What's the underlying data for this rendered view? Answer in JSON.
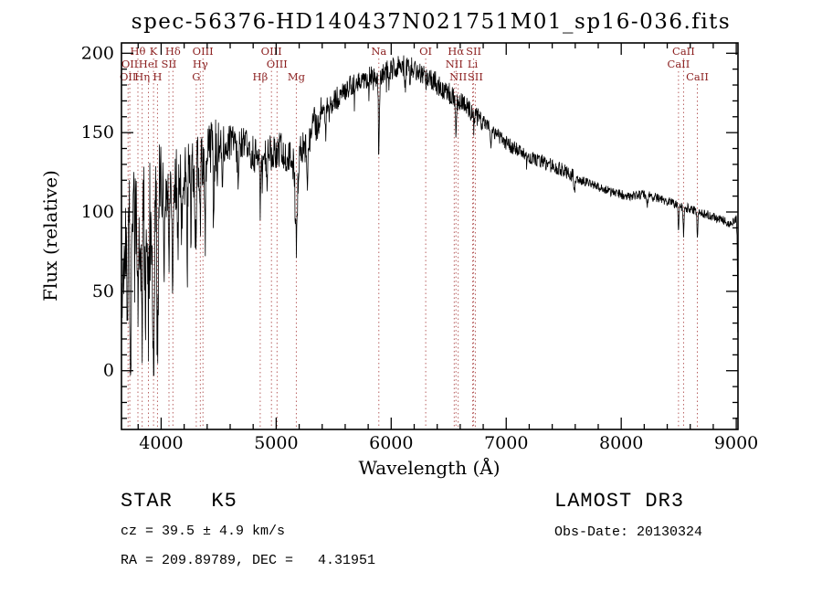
{
  "chart_data": {
    "type": "line",
    "title": "spec-56376-HD140437N021751M01_sp16-036.fits",
    "xlabel": "Wavelength (Å)",
    "ylabel": "Flux (relative)",
    "xlim": [
      3655,
      9015
    ],
    "ylim": [
      -37,
      206.5
    ],
    "xticks": [
      4000,
      5000,
      6000,
      7000,
      8000,
      9000
    ],
    "yticks": [
      0,
      50,
      100,
      150,
      200
    ],
    "x_minor_step": 200,
    "y_minor_step": 10,
    "grid": false,
    "legend": "none",
    "line_color": "#000000",
    "marker_line_color": "#b05050",
    "marker_label_color": "#8b1f1f",
    "noise_seed": 1337,
    "sample_step": 3,
    "continuum": [
      [
        3655,
        25
      ],
      [
        3675,
        70
      ],
      [
        3700,
        95
      ],
      [
        3730,
        105
      ],
      [
        3760,
        110
      ],
      [
        3800,
        112
      ],
      [
        3850,
        108
      ],
      [
        3900,
        103
      ],
      [
        3950,
        107
      ],
      [
        4000,
        112
      ],
      [
        4060,
        116
      ],
      [
        4120,
        120
      ],
      [
        4180,
        123
      ],
      [
        4240,
        126
      ],
      [
        4300,
        128
      ],
      [
        4360,
        133
      ],
      [
        4420,
        137
      ],
      [
        4480,
        141
      ],
      [
        4540,
        143
      ],
      [
        4600,
        144
      ],
      [
        4660,
        143
      ],
      [
        4720,
        141
      ],
      [
        4780,
        138
      ],
      [
        4861,
        133
      ],
      [
        4920,
        135
      ],
      [
        4980,
        139
      ],
      [
        5040,
        139
      ],
      [
        5100,
        137
      ],
      [
        5150,
        131
      ],
      [
        5210,
        136
      ],
      [
        5270,
        146
      ],
      [
        5330,
        154
      ],
      [
        5400,
        162
      ],
      [
        5470,
        168
      ],
      [
        5540,
        173
      ],
      [
        5610,
        177
      ],
      [
        5680,
        181
      ],
      [
        5750,
        184
      ],
      [
        5820,
        186
      ],
      [
        5890,
        186
      ],
      [
        5960,
        189
      ],
      [
        6030,
        191
      ],
      [
        6100,
        192
      ],
      [
        6170,
        191
      ],
      [
        6240,
        189
      ],
      [
        6310,
        186
      ],
      [
        6380,
        182
      ],
      [
        6450,
        178
      ],
      [
        6520,
        174
      ],
      [
        6590,
        170
      ],
      [
        6660,
        166
      ],
      [
        6730,
        161
      ],
      [
        6800,
        157
      ],
      [
        6870,
        152
      ],
      [
        6940,
        147
      ],
      [
        7010,
        143
      ],
      [
        7100,
        139
      ],
      [
        7200,
        135
      ],
      [
        7300,
        132
      ],
      [
        7400,
        129
      ],
      [
        7500,
        126
      ],
      [
        7600,
        122
      ],
      [
        7700,
        119
      ],
      [
        7800,
        116
      ],
      [
        7900,
        113
      ],
      [
        8000,
        111
      ],
      [
        8100,
        110
      ],
      [
        8200,
        111
      ],
      [
        8300,
        109
      ],
      [
        8400,
        107
      ],
      [
        8500,
        104
      ],
      [
        8600,
        102
      ],
      [
        8700,
        99
      ],
      [
        8800,
        97
      ],
      [
        8900,
        94
      ],
      [
        8950,
        93
      ],
      [
        9000,
        96
      ],
      [
        9008,
        85
      ],
      [
        9015,
        3
      ]
    ],
    "absorption_lines": [
      {
        "wl": 3705,
        "depth": 55,
        "sigma": 5
      },
      {
        "wl": 3735,
        "depth": 95,
        "sigma": 6
      },
      {
        "wl": 3770,
        "depth": 55,
        "sigma": 4
      },
      {
        "wl": 3798,
        "depth": 85,
        "sigma": 5
      },
      {
        "wl": 3820,
        "depth": 40,
        "sigma": 4
      },
      {
        "wl": 3835,
        "depth": 75,
        "sigma": 5
      },
      {
        "wl": 3860,
        "depth": 45,
        "sigma": 4
      },
      {
        "wl": 3889,
        "depth": 70,
        "sigma": 5
      },
      {
        "wl": 3934,
        "depth": 112,
        "sigma": 6
      },
      {
        "wl": 3968,
        "depth": 98,
        "sigma": 6
      },
      {
        "wl": 4026,
        "depth": 40,
        "sigma": 4
      },
      {
        "wl": 4068,
        "depth": 45,
        "sigma": 4
      },
      {
        "wl": 4102,
        "depth": 62,
        "sigma": 5
      },
      {
        "wl": 4144,
        "depth": 45,
        "sigma": 4
      },
      {
        "wl": 4180,
        "depth": 35,
        "sigma": 4
      },
      {
        "wl": 4226,
        "depth": 52,
        "sigma": 4
      },
      {
        "wl": 4260,
        "depth": 35,
        "sigma": 4
      },
      {
        "wl": 4300,
        "depth": 45,
        "sigma": 5
      },
      {
        "wl": 4340,
        "depth": 45,
        "sigma": 4
      },
      {
        "wl": 4383,
        "depth": 50,
        "sigma": 4
      },
      {
        "wl": 4455,
        "depth": 35,
        "sigma": 4
      },
      {
        "wl": 4530,
        "depth": 28,
        "sigma": 4
      },
      {
        "wl": 4668,
        "depth": 24,
        "sigma": 4
      },
      {
        "wl": 4861,
        "depth": 30,
        "sigma": 5
      },
      {
        "wl": 4920,
        "depth": 18,
        "sigma": 4
      },
      {
        "wl": 5175,
        "depth": 54,
        "sigma": 9
      },
      {
        "wl": 5270,
        "depth": 24,
        "sigma": 5
      },
      {
        "wl": 5430,
        "depth": 14,
        "sigma": 4
      },
      {
        "wl": 5893,
        "depth": 43,
        "sigma": 5
      },
      {
        "wl": 6122,
        "depth": 14,
        "sigma": 4
      },
      {
        "wl": 6162,
        "depth": 12,
        "sigma": 4
      },
      {
        "wl": 6300,
        "depth": 9,
        "sigma": 3
      },
      {
        "wl": 6563,
        "depth": 22,
        "sigma": 4
      },
      {
        "wl": 6717,
        "depth": 9,
        "sigma": 3
      },
      {
        "wl": 6867,
        "depth": 12,
        "sigma": 4
      },
      {
        "wl": 7180,
        "depth": 8,
        "sigma": 4
      },
      {
        "wl": 7594,
        "depth": 12,
        "sigma": 5
      },
      {
        "wl": 8226,
        "depth": 7,
        "sigma": 4
      },
      {
        "wl": 8498,
        "depth": 14,
        "sigma": 4
      },
      {
        "wl": 8542,
        "depth": 18,
        "sigma": 4
      },
      {
        "wl": 8662,
        "depth": 16,
        "sigma": 4
      }
    ],
    "noise_regions": [
      {
        "to": 4000,
        "amp": 38,
        "spike_prob": 0.12,
        "spike_depth": 65
      },
      {
        "to": 4500,
        "amp": 20,
        "spike_prob": 0.05,
        "spike_depth": 35
      },
      {
        "to": 5400,
        "amp": 12,
        "spike_prob": 0.02,
        "spike_depth": 20
      },
      {
        "to": 6800,
        "amp": 7,
        "spike_prob": 0.015,
        "spike_depth": 22
      },
      {
        "to": 7600,
        "amp": 4.5,
        "spike_prob": 0,
        "spike_depth": 0
      },
      {
        "to": 9020,
        "amp": 3,
        "spike_prob": 0.004,
        "spike_depth": 10
      }
    ],
    "line_markers": [
      {
        "label": "Hθ",
        "wl": 3798,
        "row": 1
      },
      {
        "label": "K",
        "wl": 3934,
        "row": 1
      },
      {
        "label": "Hδ",
        "wl": 4102,
        "row": 1
      },
      {
        "label": "OIII",
        "wl": 4363,
        "row": 1
      },
      {
        "label": "OIII",
        "wl": 4959,
        "row": 1
      },
      {
        "label": "Na",
        "wl": 5893,
        "row": 1
      },
      {
        "label": "OI",
        "wl": 6300,
        "row": 1
      },
      {
        "label": "Hα",
        "wl": 6563,
        "row": 1
      },
      {
        "label": "SII",
        "wl": 6717,
        "row": 1
      },
      {
        "label": "CaII",
        "wl": 8542,
        "row": 1
      },
      {
        "label": "OII",
        "wl": 3727,
        "row": 2
      },
      {
        "label": "HeI",
        "wl": 3889,
        "row": 2
      },
      {
        "label": "SII",
        "wl": 4068,
        "row": 2
      },
      {
        "label": "Hγ",
        "wl": 4340,
        "row": 2
      },
      {
        "label": "OIII",
        "wl": 5007,
        "row": 2
      },
      {
        "label": "NII",
        "wl": 6548,
        "row": 2
      },
      {
        "label": "Li",
        "wl": 6708,
        "row": 2
      },
      {
        "label": "CaII",
        "wl": 8498,
        "row": 2
      },
      {
        "label": "OII",
        "wl": 3712,
        "row": 3
      },
      {
        "label": "Hη",
        "wl": 3835,
        "row": 3
      },
      {
        "label": "H",
        "wl": 3968,
        "row": 3
      },
      {
        "label": "G",
        "wl": 4305,
        "row": 3
      },
      {
        "label": "Hβ",
        "wl": 4861,
        "row": 3
      },
      {
        "label": "Mg",
        "wl": 5175,
        "row": 3
      },
      {
        "label": "NII",
        "wl": 6583,
        "row": 3
      },
      {
        "label": "SII",
        "wl": 6731,
        "row": 3
      },
      {
        "label": "CaII",
        "wl": 8662,
        "row": 3
      }
    ]
  },
  "footer": {
    "class_label": "STAR   K5",
    "cz_label": "cz = 39.5 ± 4.9 km/s",
    "radec_label": "RA = 209.89789, DEC =   4.31951",
    "survey_label": "LAMOST DR3",
    "obsdate_label": "Obs-Date: 20130324"
  }
}
